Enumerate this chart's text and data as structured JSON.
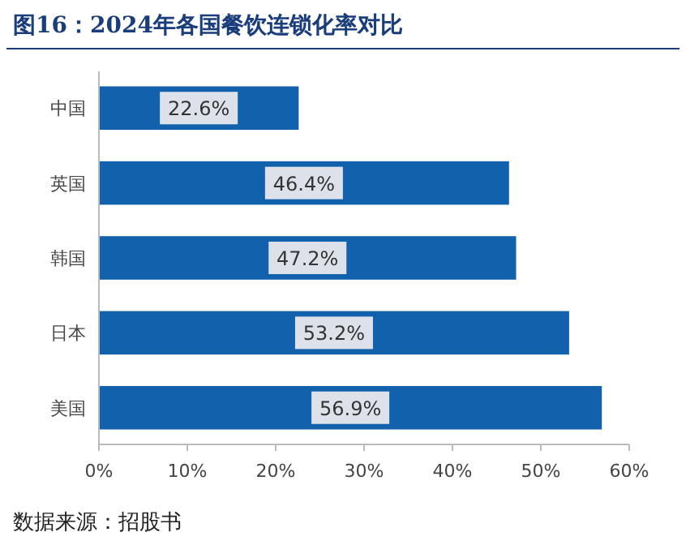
{
  "chart_data": {
    "type": "bar",
    "orientation": "horizontal",
    "title": "图16：2024年各国餐饮连锁化率对比",
    "categories": [
      "中国",
      "英国",
      "韩国",
      "日本",
      "美国"
    ],
    "values": [
      22.6,
      46.4,
      47.2,
      53.2,
      56.9
    ],
    "value_labels": [
      "22.6%",
      "46.4%",
      "47.2%",
      "53.2%",
      "56.9%"
    ],
    "color": "#1261ad",
    "xlim": [
      0,
      60
    ],
    "xticks": [
      {
        "value": 0,
        "label": "0%"
      },
      {
        "value": 10,
        "label": "10%"
      },
      {
        "value": 20,
        "label": "20%"
      },
      {
        "value": 30,
        "label": "30%"
      },
      {
        "value": 40,
        "label": "40%"
      },
      {
        "value": 50,
        "label": "50%"
      },
      {
        "value": 60,
        "label": "60%"
      }
    ],
    "grid": false,
    "annotations": [
      "数据来源：招股书"
    ]
  }
}
